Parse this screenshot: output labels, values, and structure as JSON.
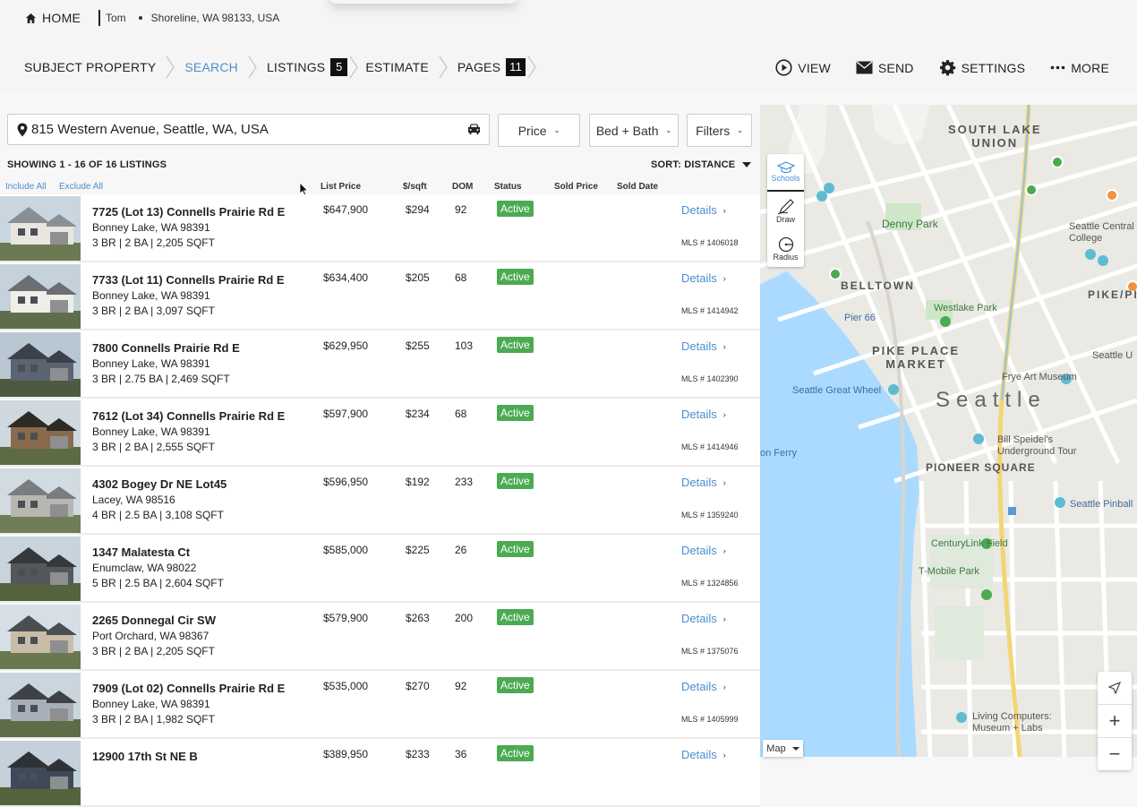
{
  "topbar": {
    "home_label": "HOME",
    "user_name": "Tom",
    "location": "Shoreline, WA 98133, USA"
  },
  "tabs": [
    {
      "label": "SUBJECT PROPERTY"
    },
    {
      "label": "SEARCH",
      "active": true
    },
    {
      "label": "LISTINGS",
      "badge": "5"
    },
    {
      "label": "ESTIMATE"
    },
    {
      "label": "PAGES",
      "badge": "11"
    }
  ],
  "actions": {
    "view": "VIEW",
    "send": "SEND",
    "settings": "SETTINGS",
    "more": "MORE"
  },
  "search": {
    "value": "815 Western Avenue, Seattle, WA, USA"
  },
  "filters": {
    "price": "Price",
    "bed_bath": "Bed + Bath",
    "filters": "Filters"
  },
  "results": {
    "showing": "SHOWING 1 - 16 OF 16 LISTINGS",
    "sort": "SORT: DISTANCE",
    "include_all": "Include All",
    "exclude_all": "Exclude All"
  },
  "columns": {
    "list_price": "List Price",
    "psf": "$/sqft",
    "dom": "DOM",
    "status": "Status",
    "sold_price": "Sold Price",
    "sold_date": "Sold Date"
  },
  "listings": [
    {
      "address": "7725 (Lot 13) Connells Prairie Rd E",
      "city": "Bonney Lake, WA 98391",
      "specs": "3 BR | 2 BA | 2,205 SQFT",
      "price": "$647,900",
      "psf": "$294",
      "dom": "92",
      "status": "Active",
      "details": "Details",
      "mls": "MLS # 1406018"
    },
    {
      "address": "7733 (Lot 11) Connells Prairie Rd E",
      "city": "Bonney Lake, WA 98391",
      "specs": "3 BR | 2 BA | 3,097 SQFT",
      "price": "$634,400",
      "psf": "$205",
      "dom": "68",
      "status": "Active",
      "details": "Details",
      "mls": "MLS # 1414942"
    },
    {
      "address": "7800 Connells Prairie Rd E",
      "city": "Bonney Lake, WA 98391",
      "specs": "3 BR | 2.75 BA | 2,469 SQFT",
      "price": "$629,950",
      "psf": "$255",
      "dom": "103",
      "status": "Active",
      "details": "Details",
      "mls": "MLS # 1402390"
    },
    {
      "address": "7612 (Lot 34) Connells Prairie Rd E",
      "city": "Bonney Lake, WA 98391",
      "specs": "3 BR | 2 BA | 2,555 SQFT",
      "price": "$597,900",
      "psf": "$234",
      "dom": "68",
      "status": "Active",
      "details": "Details",
      "mls": "MLS # 1414946"
    },
    {
      "address": "4302 Bogey Dr NE Lot45",
      "city": "Lacey, WA 98516",
      "specs": "4 BR | 2.5 BA | 3,108 SQFT",
      "price": "$596,950",
      "psf": "$192",
      "dom": "233",
      "status": "Active",
      "details": "Details",
      "mls": "MLS # 1359240"
    },
    {
      "address": "1347 Malatesta Ct",
      "city": "Enumclaw, WA 98022",
      "specs": "5 BR | 2.5 BA | 2,604 SQFT",
      "price": "$585,000",
      "psf": "$225",
      "dom": "26",
      "status": "Active",
      "details": "Details",
      "mls": "MLS # 1324856"
    },
    {
      "address": "2265 Donnegal Cir SW",
      "city": "Port Orchard, WA 98367",
      "specs": "3 BR | 2 BA | 2,205 SQFT",
      "price": "$579,900",
      "psf": "$263",
      "dom": "200",
      "status": "Active",
      "details": "Details",
      "mls": "MLS # 1375076"
    },
    {
      "address": "7909 (Lot 02) Connells Prairie Rd E",
      "city": "Bonney Lake, WA 98391",
      "specs": "3 BR | 2 BA | 1,982 SQFT",
      "price": "$535,000",
      "psf": "$270",
      "dom": "92",
      "status": "Active",
      "details": "Details",
      "mls": "MLS # 1405999"
    },
    {
      "address": "12900 17th St NE B",
      "city": "",
      "specs": "",
      "price": "$389,950",
      "psf": "$233",
      "dom": "36",
      "status": "Active",
      "details": "Details",
      "mls": ""
    }
  ],
  "map": {
    "tools": {
      "schools": "Schools",
      "draw": "Draw",
      "radius": "Radius"
    },
    "map_type": "Map",
    "labels": {
      "south_lake_union": "SOUTH LAKE\nUNION",
      "denny_park": "Denny Park",
      "seattle_central_college": "Seattle Central\nCollege",
      "belltown": "BELLTOWN",
      "pike_pi": "PIKE/PI",
      "pier_66": "Pier 66",
      "westlake_park": "Westlake Park",
      "pike_place_market": "PIKE PLACE\nMARKET",
      "seattle_great_wheel": "Seattle Great Wheel",
      "seattle": "Seattle",
      "frye": "Frye Art Museum",
      "bill_speidel": "Bill Speidel's\nUnderground Tour",
      "pioneer_square": "PIONEER SQUARE",
      "on_ferry": "on Ferry",
      "seattle_pinball": "Seattle Pinball",
      "centurylink": "CenturyLink Field",
      "tmobile": "T-Mobile Park",
      "living_computers": "Living Computers:\nMuseum + Labs",
      "seattle_u": "Seattle U"
    }
  }
}
